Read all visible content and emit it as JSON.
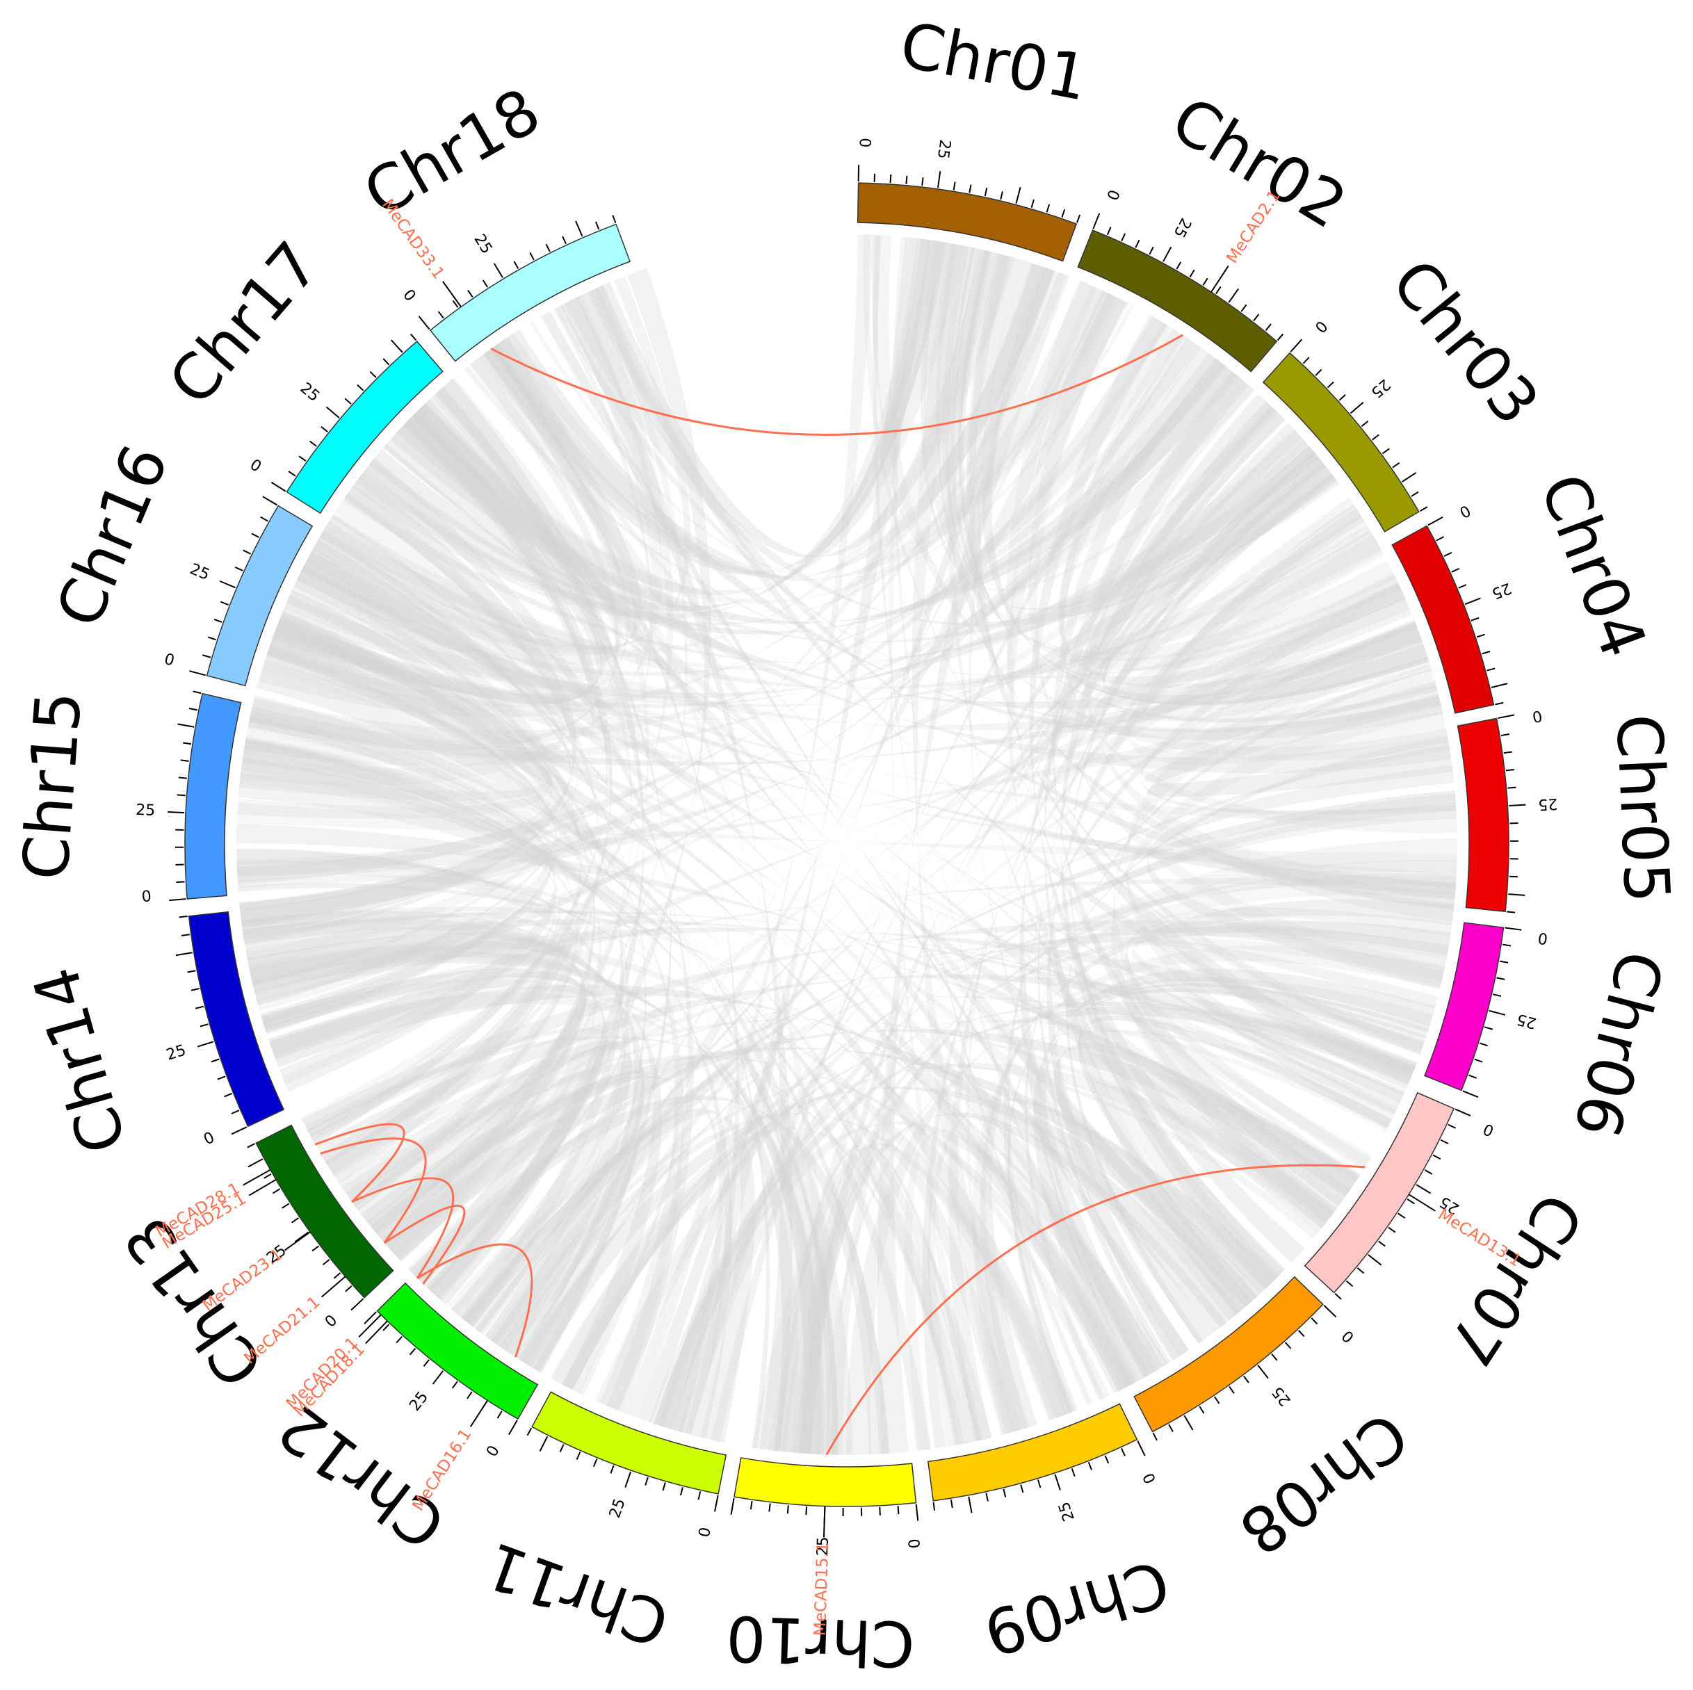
{
  "diagram": {
    "type": "circos",
    "tick_values": [
      "0",
      "25"
    ],
    "highlight_color": "#ff6f4f",
    "background_link_color": "#d3d3d3",
    "chromosomes": [
      {
        "id": "Chr01",
        "label": "Chr01",
        "color": "#a45f00"
      },
      {
        "id": "Chr02",
        "label": "Chr02",
        "color": "#5e5e00"
      },
      {
        "id": "Chr03",
        "label": "Chr03",
        "color": "#9a9a00"
      },
      {
        "id": "Chr04",
        "label": "Chr04",
        "color": "#e00000"
      },
      {
        "id": "Chr05",
        "label": "Chr05",
        "color": "#ee0000"
      },
      {
        "id": "Chr06",
        "label": "Chr06",
        "color": "#ff00cc"
      },
      {
        "id": "Chr07",
        "label": "Chr07",
        "color": "#ffc6c6"
      },
      {
        "id": "Chr08",
        "label": "Chr08",
        "color": "#ff9900"
      },
      {
        "id": "Chr09",
        "label": "Chr09",
        "color": "#ffcc00"
      },
      {
        "id": "Chr10",
        "label": "Chr10",
        "color": "#ffff00"
      },
      {
        "id": "Chr11",
        "label": "Chr11",
        "color": "#ccff00"
      },
      {
        "id": "Chr12",
        "label": "Chr12",
        "color": "#00ee00"
      },
      {
        "id": "Chr13",
        "label": "Chr13",
        "color": "#006600"
      },
      {
        "id": "Chr14",
        "label": "Chr14",
        "color": "#0000cc"
      },
      {
        "id": "Chr15",
        "label": "Chr15",
        "color": "#4499ff"
      },
      {
        "id": "Chr16",
        "label": "Chr16",
        "color": "#88ccff"
      },
      {
        "id": "Chr17",
        "label": "Chr17",
        "color": "#00ffff"
      },
      {
        "id": "Chr18",
        "label": "Chr18",
        "color": "#aaffff"
      }
    ],
    "genes": [
      {
        "name": "MeCAD33.1",
        "chr": "Chr18",
        "pos": 0.18
      },
      {
        "name": "MeCAD2.1",
        "chr": "Chr02",
        "pos": 0.62
      },
      {
        "name": "MeCAD13.1",
        "chr": "Chr07",
        "pos": 0.44
      },
      {
        "name": "MeCAD15.1",
        "chr": "Chr10",
        "pos": 0.5
      },
      {
        "name": "MeCAD18.1",
        "chr": "Chr12",
        "pos": 0.92
      },
      {
        "name": "MeCAD20.1",
        "chr": "Chr12",
        "pos": 0.97
      },
      {
        "name": "MeCAD16.1",
        "chr": "Chr12",
        "pos": 0.2
      },
      {
        "name": "MeCAD21.1",
        "chr": "Chr13",
        "pos": 0.15
      },
      {
        "name": "MeCAD23.1",
        "chr": "Chr13",
        "pos": 0.45
      },
      {
        "name": "MeCAD25.1",
        "chr": "Chr13",
        "pos": 0.78
      },
      {
        "name": "MeCAD28.1",
        "chr": "Chr13",
        "pos": 0.84
      }
    ],
    "collinear_pairs": [
      [
        "MeCAD33.1",
        "MeCAD2.1"
      ],
      [
        "MeCAD13.1",
        "MeCAD15.1"
      ],
      [
        "MeCAD21.1",
        "MeCAD18.1"
      ],
      [
        "MeCAD23.1",
        "MeCAD20.1"
      ],
      [
        "MeCAD21.1",
        "MeCAD25.1"
      ],
      [
        "MeCAD23.1",
        "MeCAD28.1"
      ],
      [
        "MeCAD16.1",
        "MeCAD20.1"
      ]
    ]
  }
}
